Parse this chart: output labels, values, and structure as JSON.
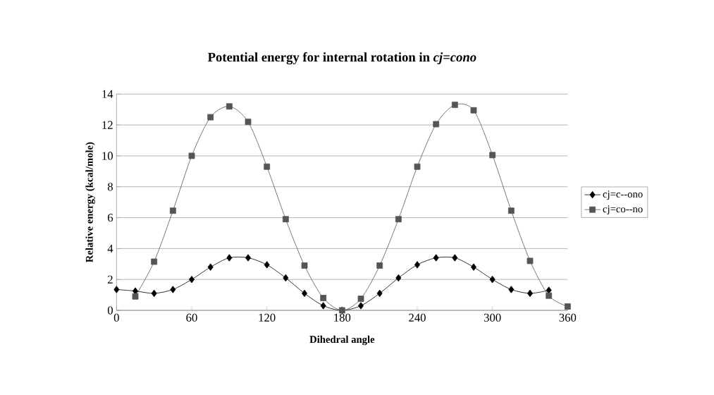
{
  "chart_data": {
    "type": "line",
    "title": "Potential energy for internal rotation in *cj=cono*",
    "xlabel": "Dihedral angle",
    "ylabel": "Relative energy (kcal/mole)",
    "xlim": [
      0,
      360
    ],
    "xticks": [
      0,
      60,
      120,
      180,
      240,
      300,
      360
    ],
    "ylim": [
      0,
      14
    ],
    "yticks": [
      0,
      2,
      4,
      6,
      8,
      10,
      12,
      14
    ],
    "grid": "y",
    "legend": "right",
    "series": [
      {
        "name": "cj=c--ono",
        "color": "#000000",
        "marker": "diamond",
        "x": [
          0,
          15,
          30,
          45,
          60,
          75,
          90,
          105,
          120,
          135,
          150,
          165,
          180,
          195,
          210,
          225,
          240,
          255,
          270,
          285,
          300,
          315,
          330,
          345
        ],
        "values": [
          1.35,
          1.25,
          1.1,
          1.35,
          2.0,
          2.8,
          3.4,
          3.4,
          2.95,
          2.1,
          1.1,
          0.3,
          0,
          0.3,
          1.1,
          2.1,
          2.95,
          3.4,
          3.4,
          2.8,
          2.0,
          1.35,
          1.1,
          1.3
        ]
      },
      {
        "name": "cj=co--no",
        "color": "#555555",
        "marker": "square",
        "x": [
          15,
          30,
          45,
          60,
          75,
          90,
          105,
          120,
          135,
          150,
          165,
          180,
          195,
          210,
          225,
          240,
          255,
          270,
          285,
          300,
          315,
          330,
          345,
          360
        ],
        "values": [
          0.9,
          3.15,
          6.45,
          10.0,
          12.5,
          13.2,
          12.2,
          9.3,
          5.9,
          2.9,
          0.8,
          0,
          0.75,
          2.9,
          5.9,
          9.3,
          12.05,
          13.3,
          12.95,
          10.05,
          6.45,
          3.2,
          0.95,
          0.25
        ]
      }
    ]
  }
}
